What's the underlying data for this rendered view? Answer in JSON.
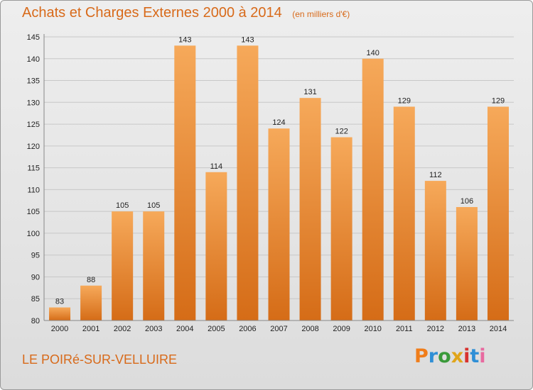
{
  "title": "Achats et Charges Externes 2000 à 2014",
  "subtitle": "(en milliers d'€)",
  "footer": {
    "commune": "LE POIRé-SUR-VELLUIRE",
    "brand": "Proxiti",
    "brand_colors": [
      "#f07d1a",
      "#2f8fd6",
      "#3a9a3a",
      "#e0a51a",
      "#d8322e",
      "#2f8fd6",
      "#e86aa0"
    ]
  },
  "colors": {
    "title": "#d86a1a",
    "bar_top": "#f6a95a",
    "bar_bottom": "#d56c17",
    "grid": "#c8c8c8"
  },
  "chart_data": {
    "type": "bar",
    "categories": [
      "2000",
      "2001",
      "2002",
      "2003",
      "2004",
      "2005",
      "2006",
      "2007",
      "2008",
      "2009",
      "2010",
      "2011",
      "2012",
      "2013",
      "2014"
    ],
    "values": [
      83,
      88,
      105,
      105,
      143,
      114,
      143,
      124,
      131,
      122,
      140,
      129,
      112,
      106,
      129
    ],
    "yticks": [
      80,
      85,
      90,
      95,
      100,
      105,
      110,
      115,
      120,
      125,
      130,
      135,
      140,
      145
    ],
    "ylim": [
      80,
      145
    ],
    "grid": true,
    "data_labels": true
  }
}
